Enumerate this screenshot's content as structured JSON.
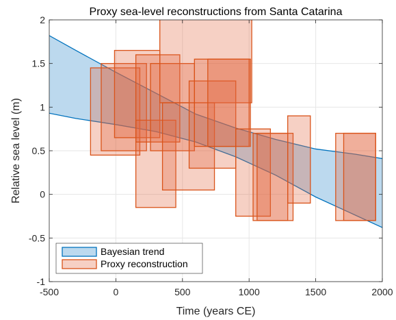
{
  "chart_data": {
    "type": "area",
    "title": "Proxy sea-level reconstructions from Santa Catarina",
    "xlabel": "Time (years CE)",
    "ylabel": "Relative sea level (m)",
    "xlim": [
      -500,
      2000
    ],
    "ylim": [
      -1,
      2
    ],
    "xticks": [
      -500,
      0,
      500,
      1000,
      1500,
      2000
    ],
    "yticks": [
      -1,
      -0.5,
      0,
      0.5,
      1,
      1.5,
      2
    ],
    "grid": true,
    "legend_position": "bottom-left",
    "colors": {
      "trend_fill": "#bcd9ee",
      "trend_line": "#0072bd",
      "proxy_fill": "#e0643a",
      "proxy_edge": "#d95319"
    },
    "series": [
      {
        "name": "Bayesian trend",
        "x": [
          -500,
          -300,
          0,
          300,
          600,
          900,
          1200,
          1500,
          1800,
          2000
        ],
        "lower": [
          0.93,
          0.87,
          0.8,
          0.72,
          0.6,
          0.43,
          0.22,
          -0.03,
          -0.24,
          -0.38
        ],
        "upper": [
          1.82,
          1.65,
          1.4,
          1.16,
          0.92,
          0.76,
          0.63,
          0.52,
          0.46,
          0.41
        ]
      },
      {
        "name": "Proxy reconstruction",
        "boxes": [
          {
            "x0": -190,
            "x1": 180,
            "y0": 0.45,
            "y1": 1.45
          },
          {
            "x0": -110,
            "x1": 230,
            "y0": 0.5,
            "y1": 1.5
          },
          {
            "x0": -10,
            "x1": 330,
            "y0": 0.65,
            "y1": 1.65
          },
          {
            "x0": 150,
            "x1": 450,
            "y0": -0.15,
            "y1": 0.85
          },
          {
            "x0": 150,
            "x1": 480,
            "y0": 0.6,
            "y1": 1.6
          },
          {
            "x0": 260,
            "x1": 590,
            "y0": 0.5,
            "y1": 1.5
          },
          {
            "x0": 330,
            "x1": 1020,
            "y0": 1.05,
            "y1": 2.35
          },
          {
            "x0": 350,
            "x1": 740,
            "y0": 0.05,
            "y1": 1.05
          },
          {
            "x0": 550,
            "x1": 900,
            "y0": 0.3,
            "y1": 1.3
          },
          {
            "x0": 590,
            "x1": 1000,
            "y0": 0.55,
            "y1": 1.55
          },
          {
            "x0": 690,
            "x1": 1010,
            "y0": 0.55,
            "y1": 1.55
          },
          {
            "x0": 900,
            "x1": 1160,
            "y0": -0.25,
            "y1": 0.75
          },
          {
            "x0": 1030,
            "x1": 1290,
            "y0": -0.3,
            "y1": 0.7
          },
          {
            "x0": 1060,
            "x1": 1330,
            "y0": -0.3,
            "y1": 0.7
          },
          {
            "x0": 1290,
            "x1": 1460,
            "y0": -0.1,
            "y1": 0.9
          },
          {
            "x0": 1650,
            "x1": 1950,
            "y0": -0.3,
            "y1": 0.7
          },
          {
            "x0": 1710,
            "x1": 1950,
            "y0": -0.3,
            "y1": 0.7
          }
        ]
      }
    ]
  }
}
